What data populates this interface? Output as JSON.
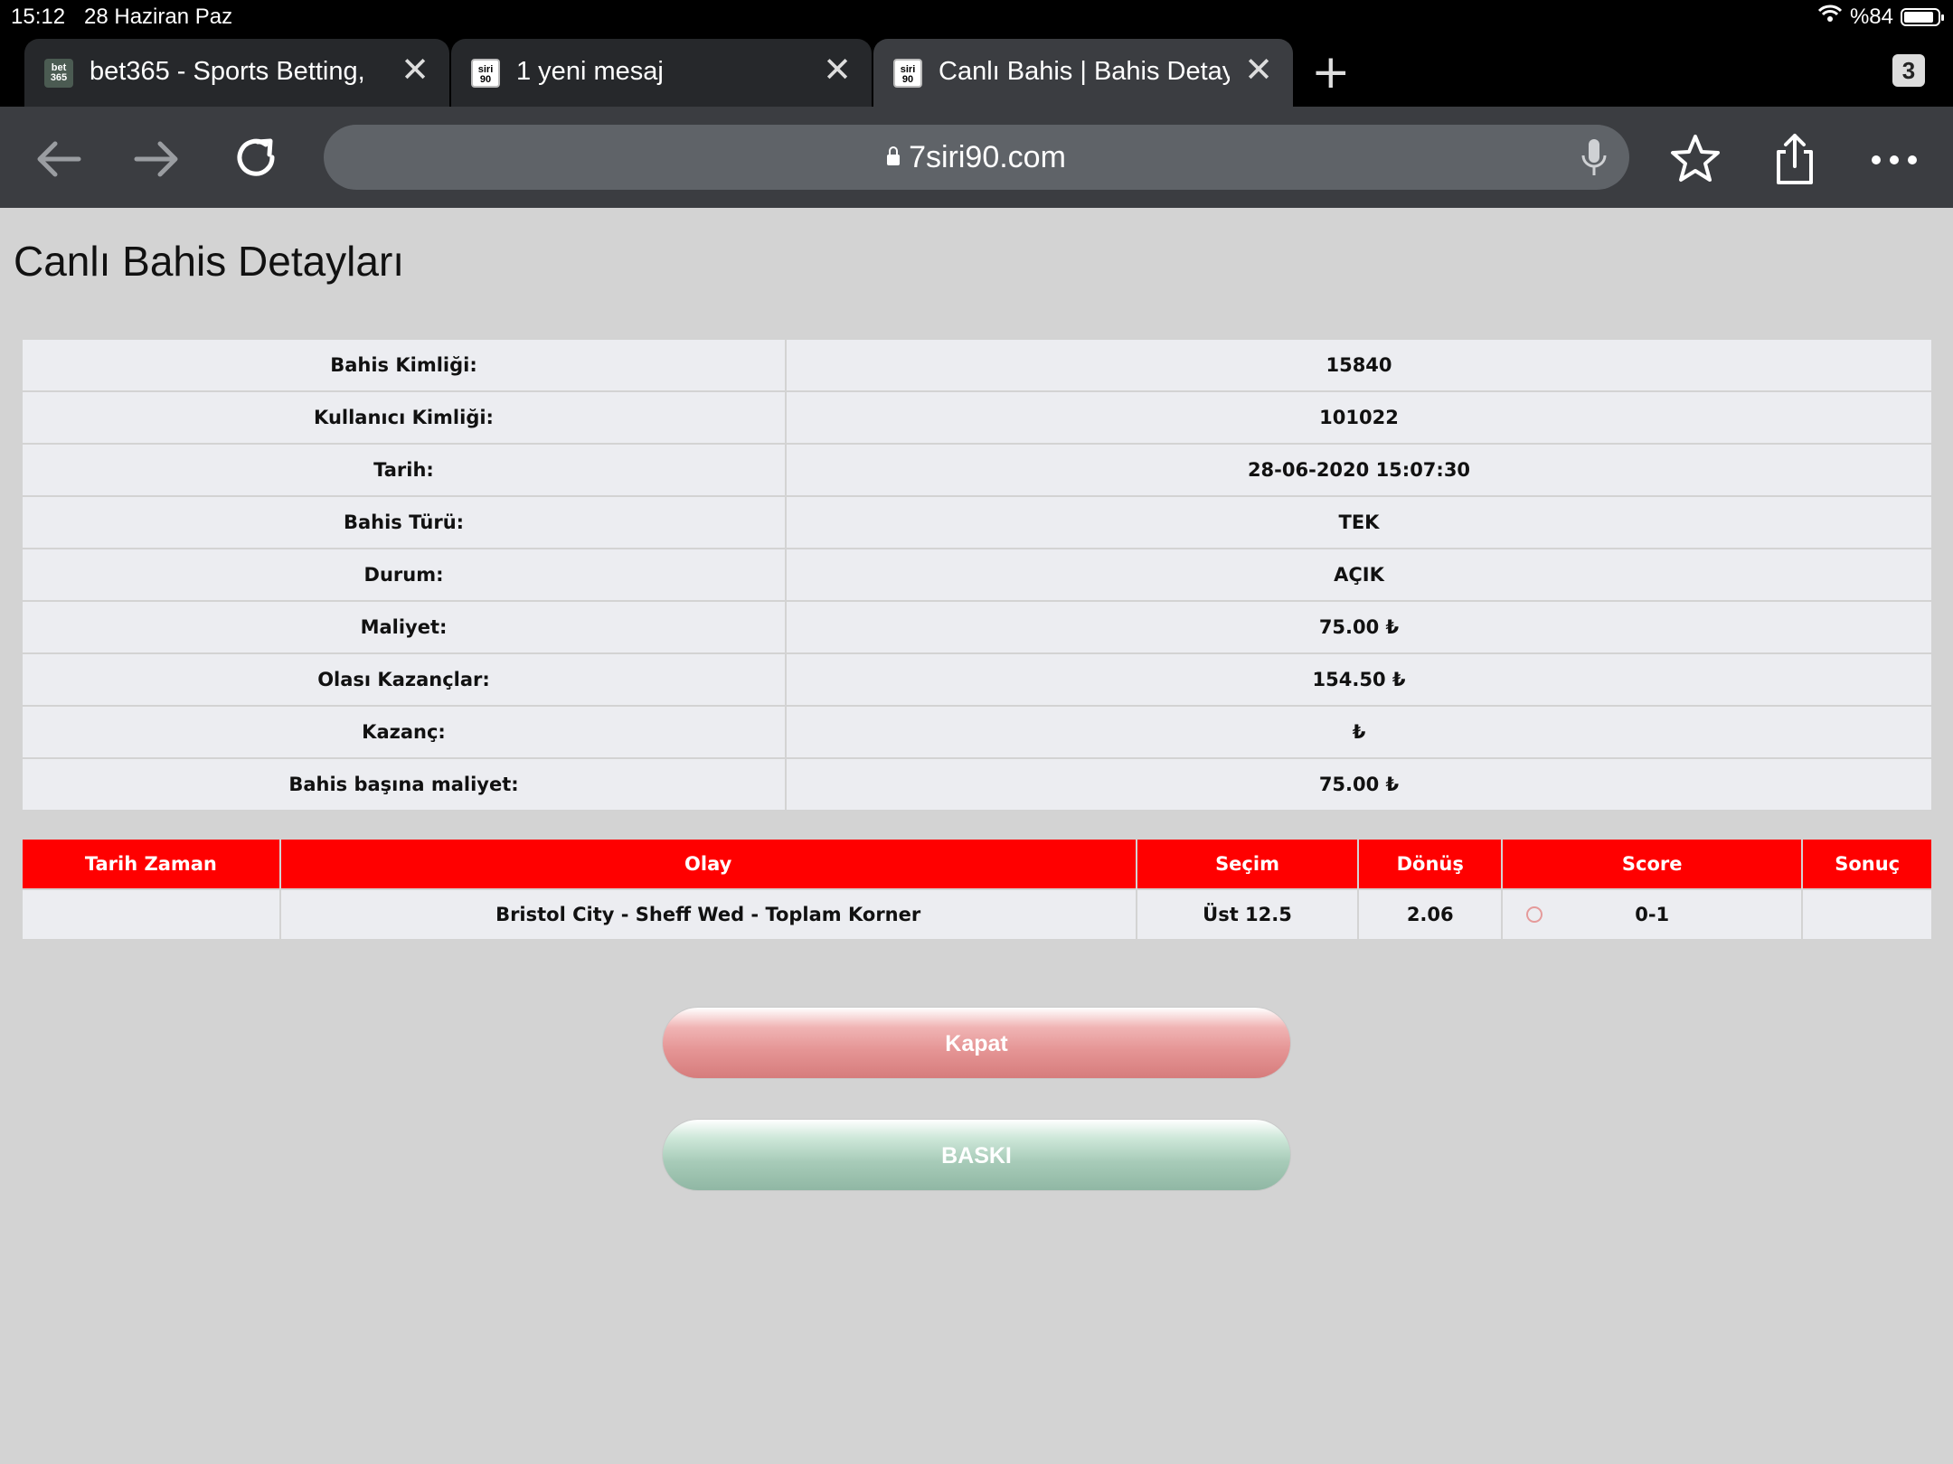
{
  "status_bar": {
    "time": "15:12",
    "date": "28 Haziran Paz",
    "battery": "%84"
  },
  "tabs": [
    {
      "title": "bet365 - Sports Betting,",
      "favicon": "bet-365",
      "active": false
    },
    {
      "title": "1 yeni mesaj",
      "favicon": "siri-90",
      "active": false
    },
    {
      "title": "Canlı Bahis | Bahis Detay",
      "favicon": "siri-90",
      "active": true
    }
  ],
  "tab_count": "3",
  "address_bar": {
    "url": "7siri90.com"
  },
  "page": {
    "title": "Canlı Bahis Detayları"
  },
  "details": [
    {
      "label": "Bahis Kimliği:",
      "value": "15840"
    },
    {
      "label": "Kullanıcı Kimliği:",
      "value": "101022"
    },
    {
      "label": "Tarih:",
      "value": "28-06-2020 15:07:30"
    },
    {
      "label": "Bahis Türü:",
      "value": "TEK"
    },
    {
      "label": "Durum:",
      "value": "AÇIK"
    },
    {
      "label": "Maliyet:",
      "value": "75.00 ₺"
    },
    {
      "label": "Olası Kazançlar:",
      "value": "154.50 ₺"
    },
    {
      "label": "Kazanç:",
      "value": "₺"
    },
    {
      "label": "Bahis başına maliyet:",
      "value": "75.00 ₺"
    }
  ],
  "events_table": {
    "headers": [
      "Tarih Zaman",
      "Olay",
      "Seçim",
      "Dönüş",
      "Score",
      "Sonuç"
    ],
    "rows": [
      {
        "datetime": "",
        "event": "Bristol City - Sheff Wed - Toplam Korner",
        "selection": "Üst 12.5",
        "odds": "2.06",
        "score": "0-1",
        "result": ""
      }
    ]
  },
  "buttons": {
    "close": "Kapat",
    "print": "BASKI"
  },
  "colors": {
    "header_red": "#ff0000",
    "close_button": "#e59595",
    "print_button": "#a7cbb8"
  }
}
